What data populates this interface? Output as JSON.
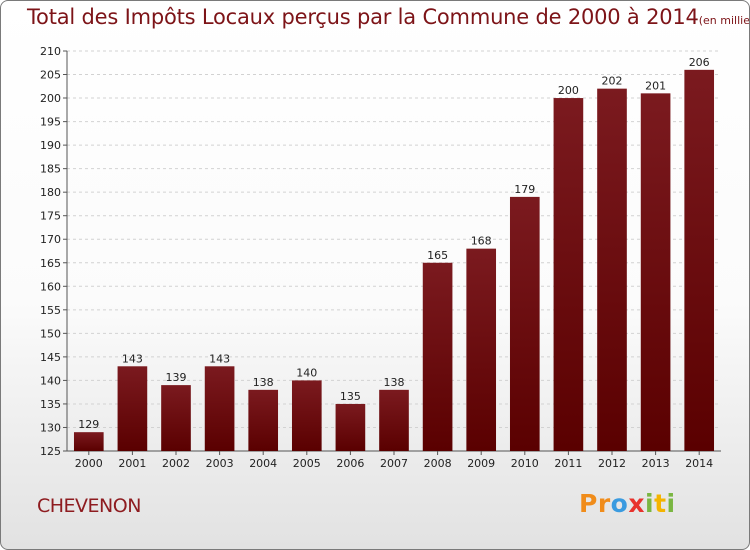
{
  "chart_data": {
    "type": "bar",
    "title": "Total des Impôts Locaux perçus par la Commune de 2000 à 2014",
    "subtitle": "(en milliers d'€)",
    "categories": [
      "2000",
      "2001",
      "2002",
      "2003",
      "2004",
      "2005",
      "2006",
      "2007",
      "2008",
      "2009",
      "2010",
      "2011",
      "2012",
      "2013",
      "2014"
    ],
    "values": [
      129,
      143,
      139,
      143,
      138,
      140,
      135,
      138,
      165,
      168,
      179,
      200,
      202,
      201,
      206
    ],
    "ylim": [
      125,
      210
    ],
    "ytick_step": 5,
    "grid": true,
    "bar_color": "#7b1a1f",
    "bar_color_dark": "#5a0000",
    "title_color": "#7d1418"
  },
  "footer": {
    "commune": "CHEVENON",
    "logo_letters": [
      "P",
      "r",
      "o",
      "x",
      "i",
      "t",
      "i"
    ],
    "logo_colors": [
      "#f08c1a",
      "#f08c1a",
      "#3a9be0",
      "#e8322d",
      "#7ab642",
      "#f4b400",
      "#7ab642"
    ]
  }
}
